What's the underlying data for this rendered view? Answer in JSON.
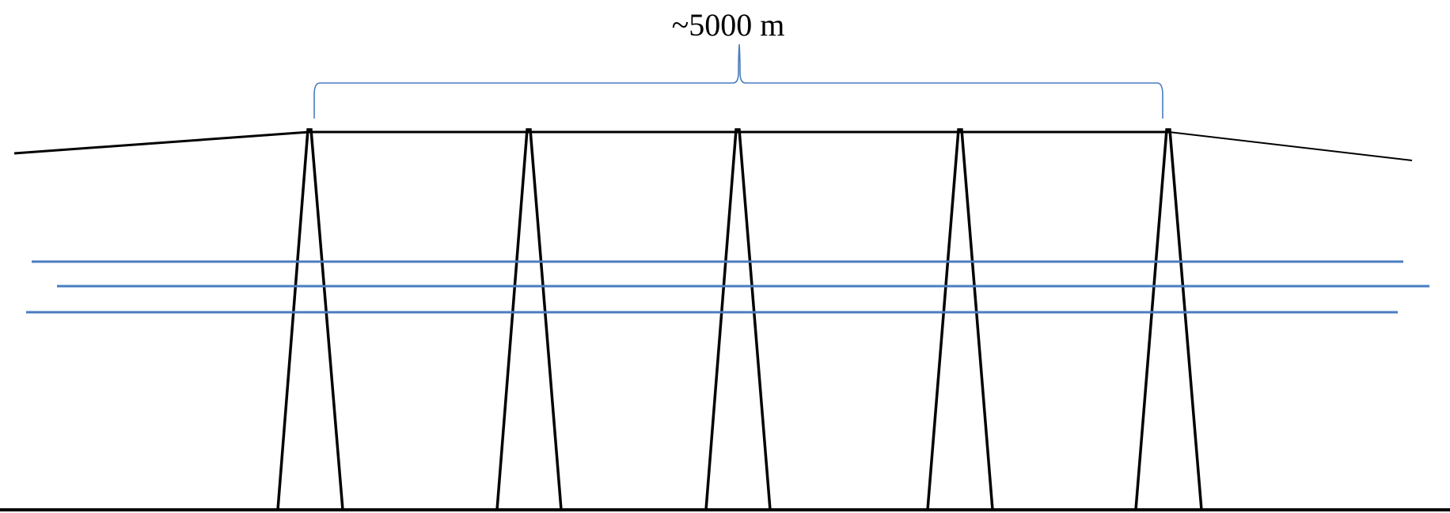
{
  "diagram": {
    "span_label": "~5000 m",
    "colors": {
      "structure": "#000000",
      "dimension": "#4a7cc0",
      "cables": "#4a7cc0"
    },
    "tower_count": 5,
    "horizontal_line_count": 3
  }
}
